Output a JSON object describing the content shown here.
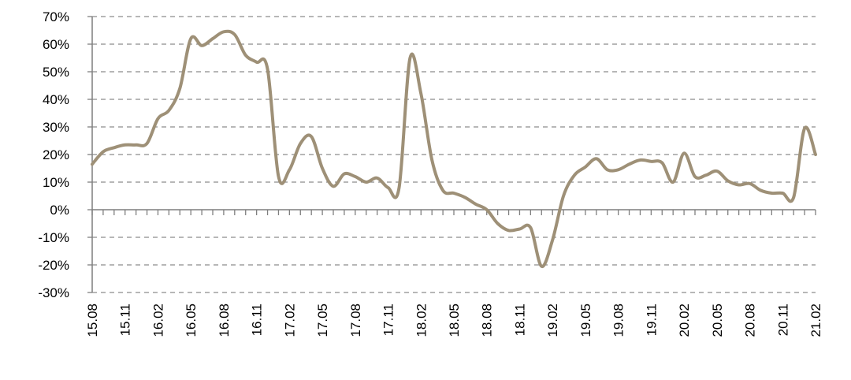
{
  "chart_data": {
    "type": "line",
    "title": "",
    "xlabel": "",
    "ylabel": "",
    "ylim": [
      -30,
      70
    ],
    "yticks": [
      70,
      60,
      50,
      40,
      30,
      20,
      10,
      0,
      -10,
      -20,
      -30
    ],
    "ytick_labels": [
      "70%",
      "60%",
      "50%",
      "40%",
      "30%",
      "20%",
      "10%",
      "0%",
      "-10%",
      "-20%",
      "-30%"
    ],
    "xtick_labels": [
      "15.08",
      "15.11",
      "16.02",
      "16.05",
      "16.08",
      "16.11",
      "17.02",
      "17.05",
      "17.08",
      "17.11",
      "18.02",
      "18.05",
      "18.08",
      "18.11",
      "19.02",
      "19.05",
      "19.08",
      "19.11",
      "20.02",
      "20.05",
      "20.08",
      "20.11",
      "21.02"
    ],
    "grid": true,
    "line_color": "#9e9077",
    "series": [
      {
        "values": [
          16.5,
          21,
          22.5,
          23.5,
          23.5,
          24,
          33,
          36,
          44,
          62,
          59.5,
          62,
          64.5,
          63.5,
          56,
          53.5,
          51,
          12,
          14.5,
          24,
          26.5,
          15,
          8.5,
          13,
          12,
          10,
          11.5,
          8,
          8,
          55,
          42,
          18,
          7,
          6,
          4.5,
          2,
          0,
          -5,
          -7.5,
          -7,
          -6.5,
          -20.5,
          -11,
          5,
          12.5,
          15.5,
          18.5,
          14.5,
          14.5,
          16.5,
          18,
          17.5,
          17,
          10,
          20.5,
          12,
          12.5,
          14,
          10.5,
          9,
          9.5,
          7,
          6,
          6,
          4.5,
          29.5,
          20
        ]
      }
    ]
  }
}
